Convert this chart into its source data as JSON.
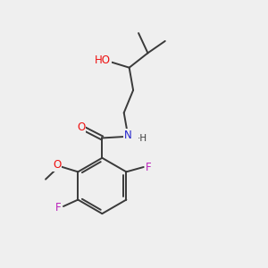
{
  "background_color": "#efefef",
  "bond_color": "#3a3a3a",
  "atom_colors": {
    "O": "#ee1111",
    "N": "#2222cc",
    "F": "#bb22bb",
    "C": "#3a3a3a",
    "H": "#3a3a3a"
  },
  "figsize": [
    3.0,
    3.0
  ],
  "dpi": 100,
  "bond_lw": 1.4,
  "font_size": 8.5
}
